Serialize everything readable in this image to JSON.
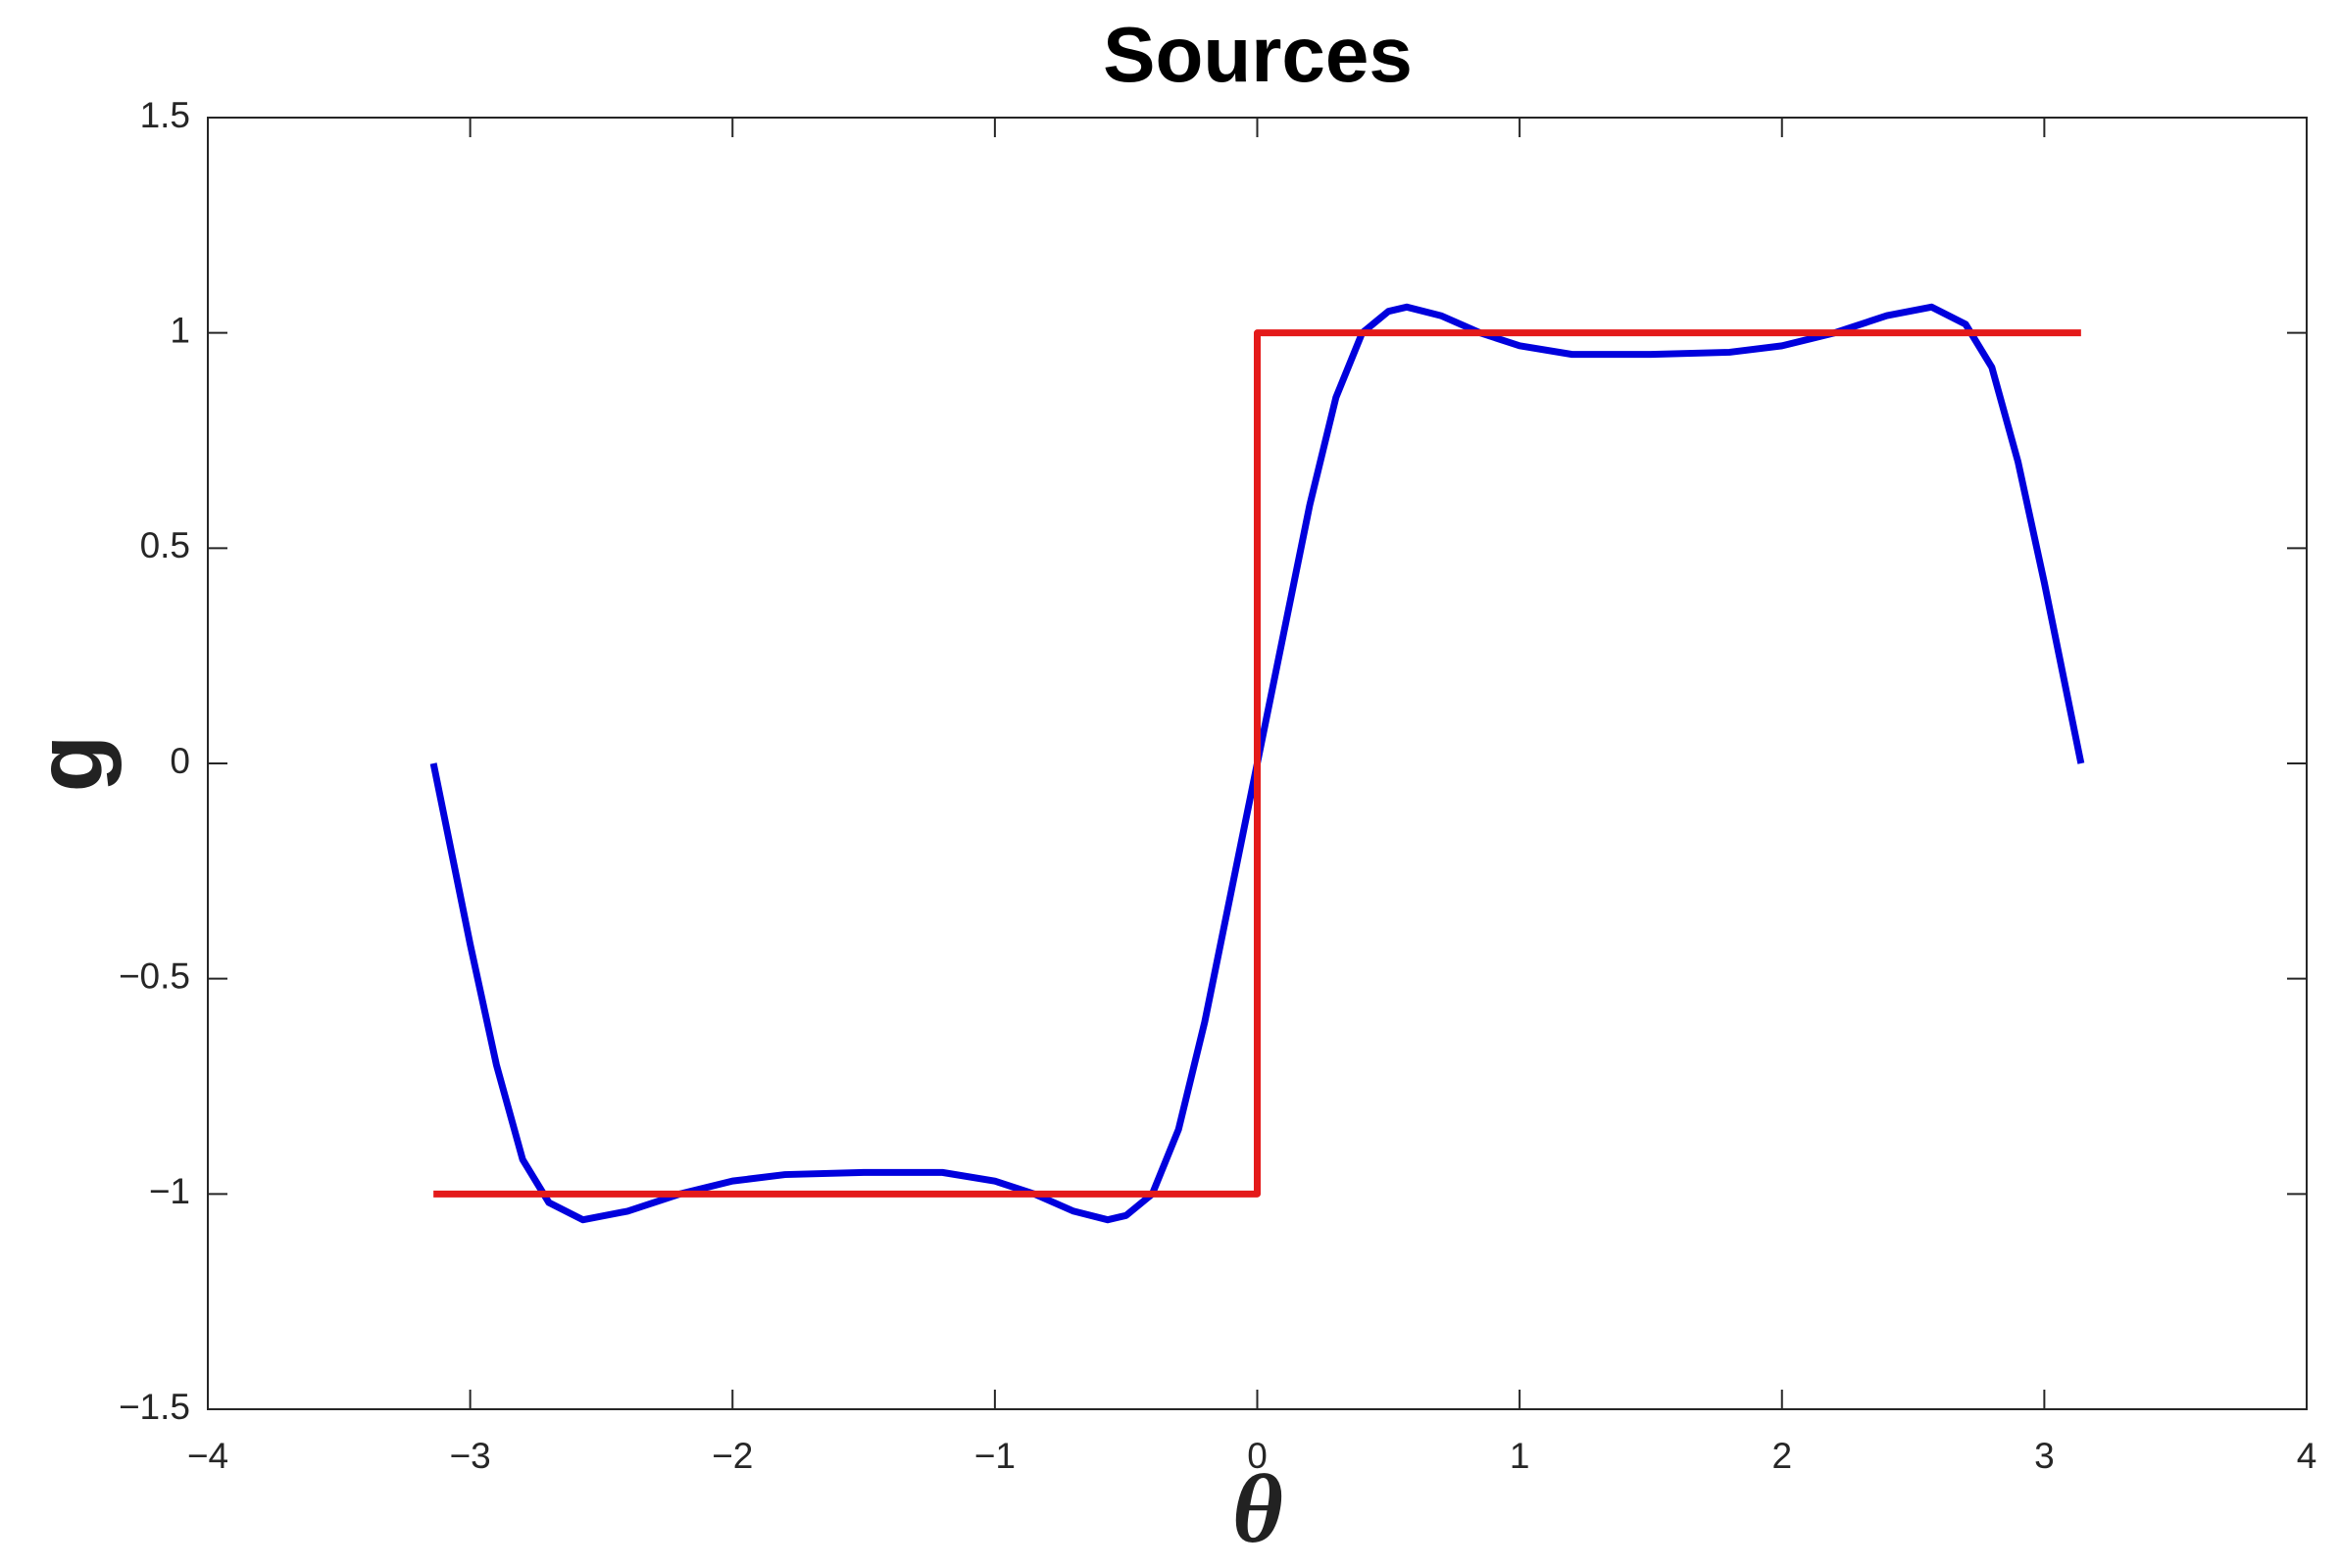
{
  "chart_data": {
    "type": "line",
    "title": "Sources",
    "x_label": "θ",
    "y_label": "g",
    "xlim": [
      -4,
      4
    ],
    "xticks": [
      {
        "value": -4,
        "label": "−4"
      },
      {
        "value": -3,
        "label": "−3"
      },
      {
        "value": -2,
        "label": "−2"
      },
      {
        "value": -1,
        "label": "−1"
      },
      0,
      1,
      2,
      3,
      4
    ],
    "ylim": [
      -1.5,
      1.5
    ],
    "yticks": [
      {
        "value": -1.5,
        "label": "−1.5"
      },
      {
        "value": -1,
        "label": "−1"
      },
      {
        "value": -0.5,
        "label": "−0.5"
      },
      0,
      0.5,
      1,
      1.5
    ],
    "grid": false,
    "series": [
      {
        "color": "#0000dd",
        "x": [
          -3.14,
          -3.1,
          -3.0,
          -2.9,
          -2.8,
          -2.7,
          -2.57,
          -2.4,
          -2.2,
          -2.0,
          -1.8,
          -1.5,
          -1.2,
          -1.0,
          -0.85,
          -0.7,
          -0.57,
          -0.5,
          -0.4,
          -0.3,
          -0.2,
          -0.1,
          0,
          0.1,
          0.2,
          0.3,
          0.4,
          0.5,
          0.57,
          0.7,
          0.85,
          1.0,
          1.2,
          1.5,
          1.8,
          2.0,
          2.2,
          2.4,
          2.57,
          2.7,
          2.8,
          2.9,
          3.0,
          3.1,
          3.14
        ],
        "values": [
          0,
          -0.12,
          -0.42,
          -0.7,
          -0.92,
          -1.02,
          -1.06,
          -1.04,
          -1.0,
          -0.97,
          -0.955,
          -0.95,
          -0.95,
          -0.97,
          -1.0,
          -1.04,
          -1.06,
          -1.05,
          -1.0,
          -0.85,
          -0.6,
          -0.3,
          0,
          0.3,
          0.6,
          0.85,
          1.0,
          1.05,
          1.06,
          1.04,
          1.0,
          0.97,
          0.95,
          0.95,
          0.955,
          0.97,
          1.0,
          1.04,
          1.06,
          1.02,
          0.92,
          0.7,
          0.42,
          0.12,
          0
        ]
      },
      {
        "color": "#e41a1a",
        "x": [
          -3.14,
          0,
          0,
          3.14
        ],
        "values": [
          -1,
          -1,
          1,
          1
        ]
      }
    ]
  }
}
